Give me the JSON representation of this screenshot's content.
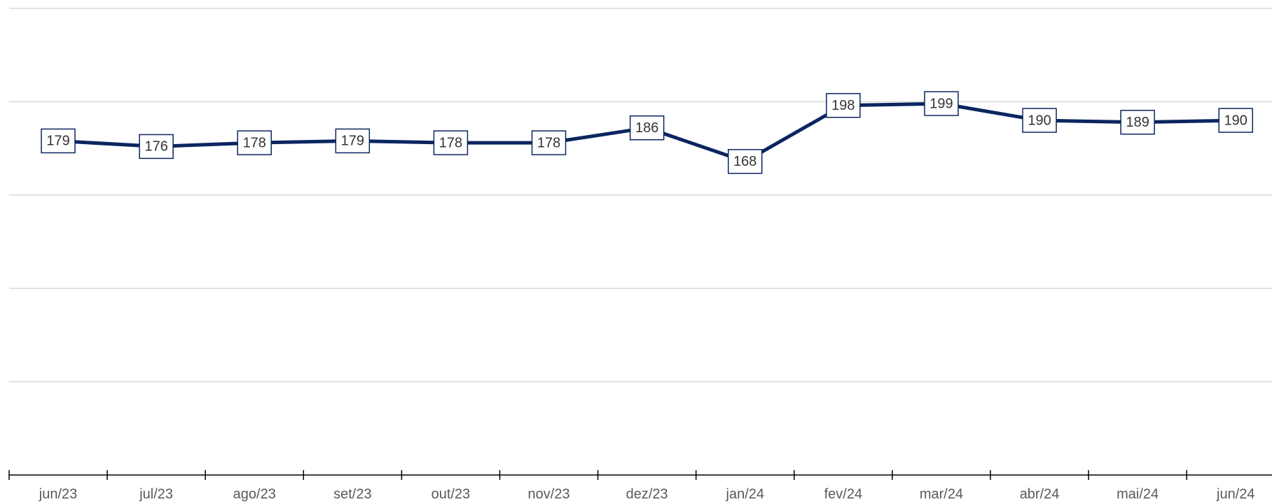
{
  "chart_data": {
    "type": "line",
    "categories": [
      "jun/23",
      "jul/23",
      "ago/23",
      "set/23",
      "out/23",
      "nov/23",
      "dez/23",
      "jan/24",
      "fev/24",
      "mar/24",
      "abr/24",
      "mai/24",
      "jun/24"
    ],
    "series": [
      {
        "color": "#0b2560",
        "values": [
          179,
          176,
          178,
          179,
          178,
          178,
          186,
          168,
          198,
          199,
          190,
          189,
          190
        ]
      }
    ],
    "ylim": [
      0,
      250
    ],
    "yticks": [
      0,
      50,
      100,
      150,
      200,
      250
    ],
    "grid": true
  }
}
